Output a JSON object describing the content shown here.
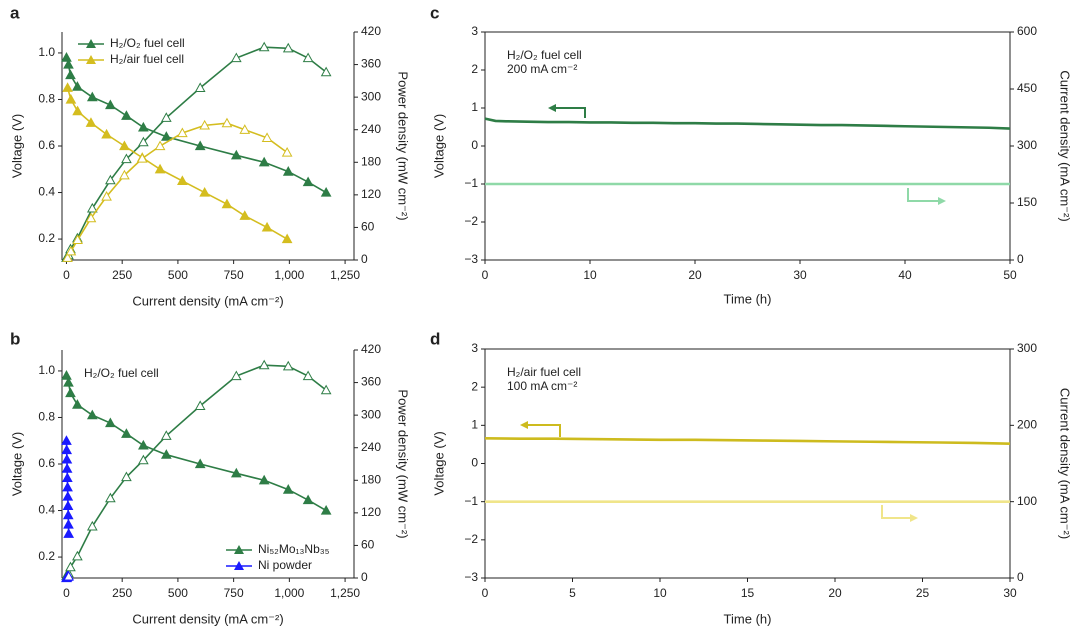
{
  "chart_data": [
    {
      "type": "line",
      "label": "a",
      "xlabel": "Current density (mA cm⁻²)",
      "ylabel": "Voltage (V)",
      "y2label": "Power density (mW cm⁻²)",
      "xlim": [
        -20,
        1290
      ],
      "xticks": [
        0,
        250,
        500,
        750,
        {
          "value": 1000,
          "label": "1,000"
        },
        {
          "value": 1250,
          "label": "1,250"
        }
      ],
      "ylim": [
        0.11,
        1.09
      ],
      "yticks": [
        0.2,
        0.4,
        0.6,
        0.8,
        {
          "value": 1,
          "label": "1.0"
        }
      ],
      "y2lim": [
        0,
        420
      ],
      "y2ticks": [
        0,
        60,
        120,
        180,
        240,
        300,
        360,
        420
      ],
      "legend": "upper left",
      "series": [
        {
          "name": "H₂/O₂ fuel cell",
          "color": "#2e7d46",
          "marker": "filled",
          "x": [
            0,
            9,
            18,
            49,
            116,
            197,
            269,
            345,
            448,
            600,
            762,
            887,
            995,
            1084,
            1165
          ],
          "values": [
            0.98,
            0.95,
            0.905,
            0.855,
            0.81,
            0.776,
            0.73,
            0.68,
            0.64,
            0.6,
            0.56,
            0.53,
            0.49,
            0.445,
            0.4
          ]
        },
        {
          "color": "#2e7d46",
          "marker": "open",
          "axis": "y2",
          "x": [
            0,
            9,
            18,
            49,
            116,
            197,
            269,
            345,
            448,
            600,
            762,
            887,
            995,
            1084,
            1165
          ],
          "values": [
            4,
            9,
            20,
            40,
            95,
            147,
            186,
            217,
            262,
            317,
            372,
            392,
            390,
            372,
            346
          ]
        },
        {
          "name": "H₂/air fuel cell",
          "color": "#d4bd1f",
          "marker": "filled",
          "x": [
            5,
            20,
            50,
            110,
            180,
            260,
            340,
            420,
            520,
            620,
            720,
            800,
            900,
            990
          ],
          "values": [
            0.85,
            0.8,
            0.75,
            0.7,
            0.65,
            0.6,
            0.55,
            0.5,
            0.45,
            0.4,
            0.35,
            0.3,
            0.25,
            0.2
          ]
        },
        {
          "color": "#d4bd1f",
          "marker": "open",
          "axis": "y2",
          "x": [
            5,
            20,
            50,
            110,
            180,
            260,
            340,
            420,
            520,
            620,
            720,
            800,
            900,
            990
          ],
          "values": [
            4,
            16,
            37,
            77,
            117,
            156,
            187,
            210,
            234,
            248,
            252,
            240,
            225,
            198
          ]
        }
      ]
    },
    {
      "type": "line",
      "label": "b",
      "xlabel": "Current density (mA cm⁻²)",
      "ylabel": "Voltage (V)",
      "y2label": "Power density (mW cm⁻²)",
      "annotation": [
        "H₂/O₂ fuel cell"
      ],
      "xlim": [
        -20,
        1290
      ],
      "xticks": [
        0,
        250,
        500,
        750,
        {
          "value": 1000,
          "label": "1,000"
        },
        {
          "value": 1250,
          "label": "1,250"
        }
      ],
      "ylim": [
        0.11,
        1.09
      ],
      "yticks": [
        0.2,
        0.4,
        0.6,
        0.8,
        {
          "value": 1,
          "label": "1.0"
        }
      ],
      "y2lim": [
        0,
        420
      ],
      "y2ticks": [
        0,
        60,
        120,
        180,
        240,
        300,
        360,
        420
      ],
      "legend": "lower right",
      "series": [
        {
          "name": "Ni₅₂Mo₁₃Nb₃₅",
          "color": "#2e7d46",
          "marker": "filled",
          "x": [
            0,
            9,
            18,
            49,
            116,
            197,
            269,
            345,
            448,
            600,
            762,
            887,
            995,
            1084,
            1165
          ],
          "values": [
            0.98,
            0.95,
            0.905,
            0.855,
            0.81,
            0.776,
            0.73,
            0.68,
            0.64,
            0.6,
            0.56,
            0.53,
            0.49,
            0.445,
            0.4
          ]
        },
        {
          "color": "#2e7d46",
          "marker": "open",
          "axis": "y2",
          "x": [
            0,
            9,
            18,
            49,
            116,
            197,
            269,
            345,
            448,
            600,
            762,
            887,
            995,
            1084,
            1165
          ],
          "values": [
            4,
            9,
            20,
            40,
            95,
            147,
            186,
            217,
            262,
            317,
            372,
            392,
            390,
            372,
            346
          ]
        },
        {
          "name": "Ni powder",
          "color": "#1a1aff",
          "marker": "filled",
          "x": [
            0,
            1,
            2,
            3,
            4,
            5,
            6,
            7,
            8,
            9,
            10
          ],
          "values": [
            0.7,
            0.66,
            0.62,
            0.58,
            0.54,
            0.5,
            0.46,
            0.42,
            0.38,
            0.34,
            0.3
          ]
        },
        {
          "color": "#1a1aff",
          "marker": "open",
          "axis": "y2",
          "x": [
            0,
            1,
            2,
            3,
            4,
            5,
            6,
            7,
            8,
            9,
            10
          ],
          "values": [
            0,
            1,
            1,
            2,
            2,
            3,
            3,
            3,
            3,
            3,
            3
          ]
        }
      ]
    },
    {
      "type": "line",
      "label": "c",
      "xlabel": "Time (h)",
      "ylabel": "Voltage (V)",
      "y2label": "Current density (mA cm⁻²)",
      "annotation": [
        "H₂/O₂ fuel cell",
        "200 mA cm⁻²"
      ],
      "xlim": [
        0,
        50
      ],
      "xticks": [
        0,
        10,
        20,
        30,
        40,
        50
      ],
      "ylim": [
        -3,
        3
      ],
      "yticks": [
        {
          "value": -3,
          "label": "−3"
        },
        {
          "value": -2,
          "label": "−2"
        },
        {
          "value": -1,
          "label": "−1"
        },
        0,
        1,
        2,
        3
      ],
      "y2lim": [
        0,
        600
      ],
      "y2ticks": [
        0,
        150,
        300,
        450,
        600
      ],
      "series": [
        {
          "color": "#2e7d46",
          "x": [
            0,
            1,
            2,
            4,
            6,
            8,
            10,
            12,
            14,
            16,
            18,
            20,
            22,
            24,
            26,
            28,
            30,
            32,
            34,
            36,
            38,
            40,
            42,
            44,
            46,
            48,
            50
          ],
          "values": [
            0.72,
            0.66,
            0.65,
            0.64,
            0.63,
            0.63,
            0.62,
            0.62,
            0.61,
            0.61,
            0.6,
            0.6,
            0.59,
            0.59,
            0.58,
            0.57,
            0.56,
            0.55,
            0.55,
            0.54,
            0.53,
            0.52,
            0.51,
            0.5,
            0.49,
            0.48,
            0.46
          ]
        },
        {
          "color": "#8fd9a8",
          "axis": "y2",
          "x": [
            0,
            50
          ],
          "values": [
            200,
            200
          ]
        }
      ]
    },
    {
      "type": "line",
      "label": "d",
      "xlabel": "Time (h)",
      "ylabel": "Voltage (V)",
      "y2label": "Current density (mA cm⁻²)",
      "annotation": [
        "H₂/air fuel cell",
        "100 mA cm⁻²"
      ],
      "xlim": [
        0,
        30
      ],
      "xticks": [
        0,
        5,
        10,
        15,
        20,
        25,
        30
      ],
      "ylim": [
        -3,
        3
      ],
      "yticks": [
        {
          "value": -3,
          "label": "−3"
        },
        {
          "value": -2,
          "label": "−2"
        },
        {
          "value": -1,
          "label": "−1"
        },
        0,
        1,
        2,
        3
      ],
      "y2lim": [
        0,
        300
      ],
      "y2ticks": [
        0,
        100,
        200,
        300
      ],
      "series": [
        {
          "color": "#cdbb1e",
          "x": [
            0,
            2,
            4,
            6,
            8,
            10,
            12,
            14,
            16,
            18,
            20,
            22,
            24,
            26,
            28,
            30
          ],
          "values": [
            0.66,
            0.65,
            0.65,
            0.64,
            0.63,
            0.62,
            0.62,
            0.61,
            0.6,
            0.59,
            0.58,
            0.57,
            0.56,
            0.55,
            0.54,
            0.52
          ]
        },
        {
          "color": "#f0e58a",
          "axis": "y2",
          "x": [
            0,
            30
          ],
          "values": [
            100,
            100
          ]
        }
      ]
    }
  ]
}
